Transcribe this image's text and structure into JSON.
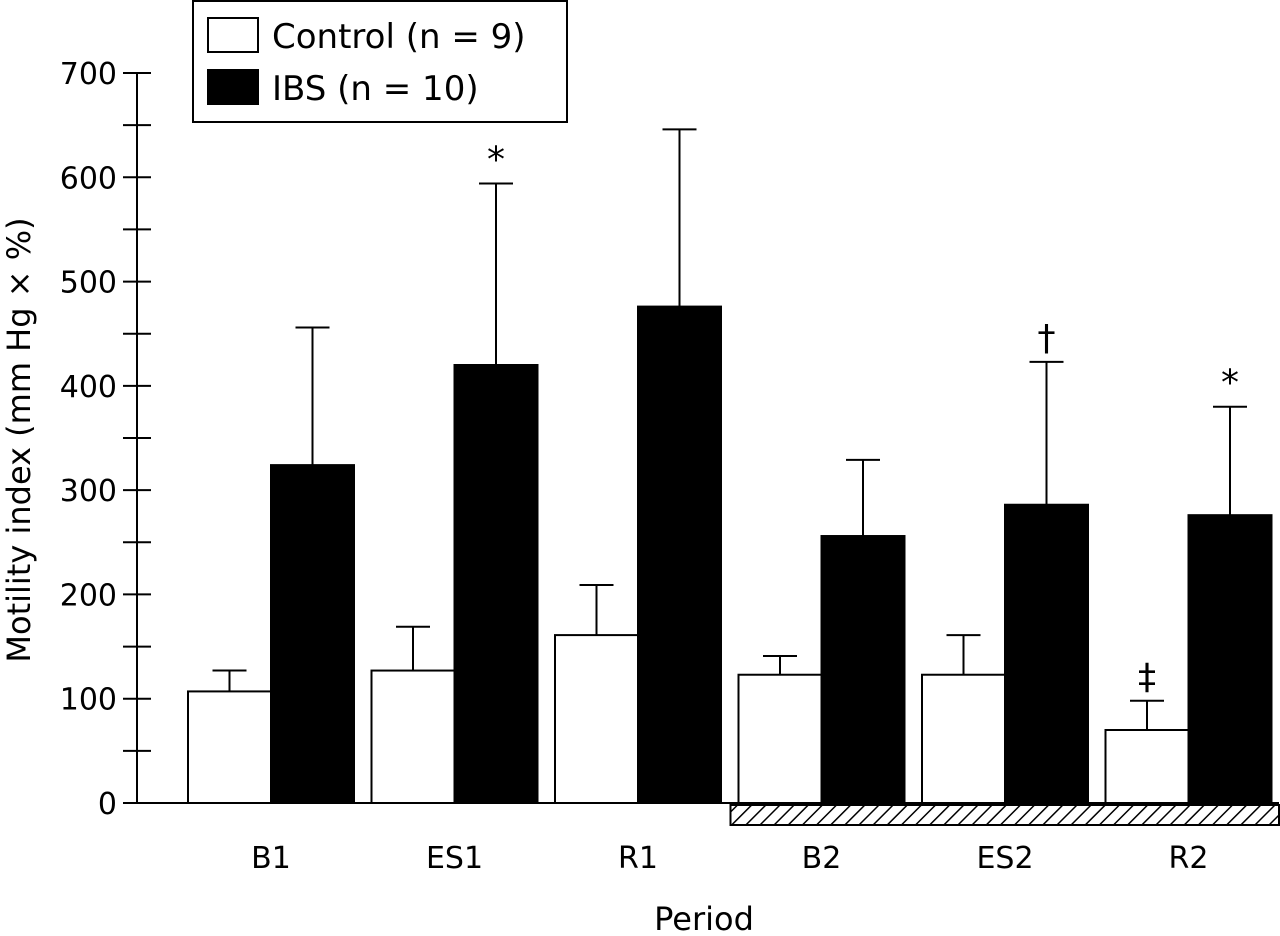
{
  "chart_data": {
    "type": "bar",
    "title": "",
    "xlabel": "Period",
    "ylabel": "Motility index (mm Hg × %)",
    "ylim": [
      0,
      700
    ],
    "yticks": [
      0,
      100,
      200,
      300,
      400,
      500,
      600,
      700
    ],
    "categories": [
      "B1",
      "ES1",
      "R1",
      "B2",
      "ES2",
      "R2"
    ],
    "series": [
      {
        "name": "Control (n = 9)",
        "color": "#ffffff",
        "values": [
          107,
          127,
          161,
          123,
          123,
          70
        ],
        "errors": [
          20,
          42,
          48,
          18,
          38,
          28
        ]
      },
      {
        "name": "IBS (n = 10)",
        "color": "#000000",
        "values": [
          324,
          420,
          476,
          256,
          286,
          276
        ],
        "errors": [
          132,
          174,
          170,
          73,
          137,
          104
        ]
      }
    ],
    "annotations": [
      {
        "category": "ES1",
        "series": 1,
        "text": "*"
      },
      {
        "category": "ES2",
        "series": 1,
        "text": "†"
      },
      {
        "category": "R2",
        "series": 1,
        "text": "*"
      },
      {
        "category": "R2",
        "series": 0,
        "text": "‡"
      }
    ],
    "hatched_categories": [
      "B2",
      "ES2",
      "R2"
    ],
    "legend_position": "top-left",
    "grid": false
  }
}
